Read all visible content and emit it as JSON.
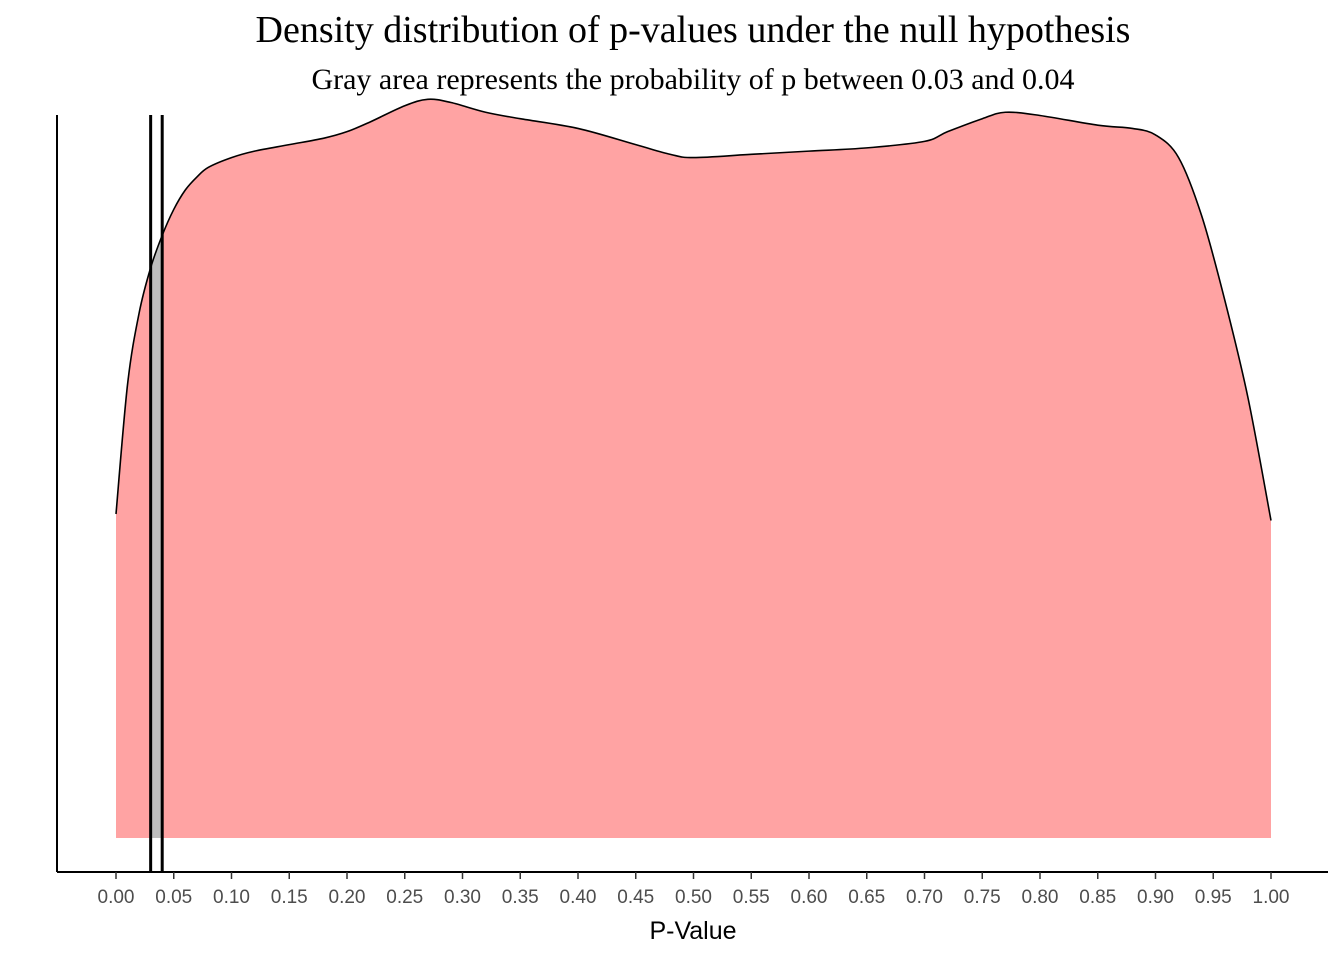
{
  "chart_data": {
    "type": "area",
    "title": "Density distribution of p-values under the null hypothesis",
    "subtitle": "Gray area represents the probability of p between 0.03 and 0.04",
    "xlabel": "P-Value",
    "ylabel": "",
    "xlim": [
      0,
      1
    ],
    "xticks": [
      "0.00",
      "0.05",
      "0.10",
      "0.15",
      "0.20",
      "0.25",
      "0.30",
      "0.35",
      "0.40",
      "0.45",
      "0.50",
      "0.55",
      "0.60",
      "0.65",
      "0.70",
      "0.75",
      "0.80",
      "0.85",
      "0.90",
      "0.95",
      "1.00"
    ],
    "y_axis_ticks_shown": false,
    "density": {
      "x": [
        0.0,
        0.01,
        0.02,
        0.03,
        0.04,
        0.05,
        0.06,
        0.07,
        0.08,
        0.1,
        0.12,
        0.15,
        0.18,
        0.2,
        0.22,
        0.25,
        0.27,
        0.29,
        0.32,
        0.35,
        0.4,
        0.45,
        0.48,
        0.5,
        0.55,
        0.6,
        0.65,
        0.7,
        0.72,
        0.75,
        0.77,
        0.8,
        0.85,
        0.88,
        0.9,
        0.92,
        0.94,
        0.96,
        0.98,
        1.0
      ],
      "y": [
        0.5,
        0.7,
        0.81,
        0.88,
        0.93,
        0.97,
        1.0,
        1.02,
        1.035,
        1.05,
        1.06,
        1.07,
        1.08,
        1.09,
        1.105,
        1.13,
        1.14,
        1.135,
        1.12,
        1.11,
        1.095,
        1.07,
        1.055,
        1.05,
        1.055,
        1.06,
        1.065,
        1.075,
        1.09,
        1.11,
        1.12,
        1.115,
        1.1,
        1.095,
        1.085,
        1.05,
        0.96,
        0.83,
        0.68,
        0.49
      ]
    },
    "highlight": {
      "from": 0.03,
      "to": 0.04,
      "fill": "#bebebe"
    },
    "fill_color": "#ffa3a3",
    "outline_color": "#000000",
    "vertical_lines": [
      0.03,
      0.04
    ]
  }
}
